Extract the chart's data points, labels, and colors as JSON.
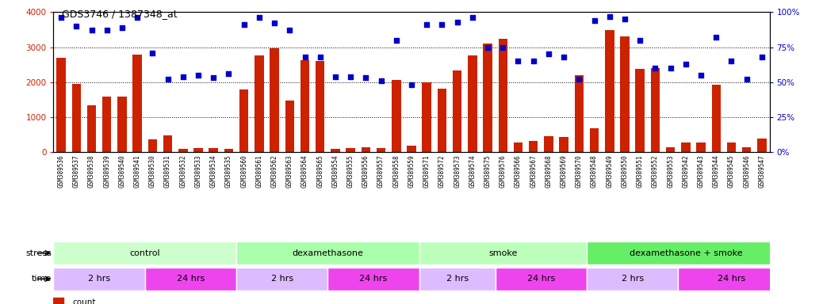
{
  "title": "GDS3746 / 1387348_at",
  "samples": [
    "GSM389536",
    "GSM389537",
    "GSM389538",
    "GSM389539",
    "GSM389540",
    "GSM389541",
    "GSM389530",
    "GSM389531",
    "GSM389532",
    "GSM389533",
    "GSM389534",
    "GSM389535",
    "GSM389560",
    "GSM389561",
    "GSM389562",
    "GSM389563",
    "GSM389564",
    "GSM389565",
    "GSM389554",
    "GSM389555",
    "GSM389556",
    "GSM389557",
    "GSM389558",
    "GSM389559",
    "GSM389571",
    "GSM389572",
    "GSM389573",
    "GSM389574",
    "GSM389575",
    "GSM389576",
    "GSM389566",
    "GSM389567",
    "GSM389568",
    "GSM389569",
    "GSM389570",
    "GSM389548",
    "GSM389549",
    "GSM389550",
    "GSM389551",
    "GSM389552",
    "GSM389553",
    "GSM389542",
    "GSM389543",
    "GSM389544",
    "GSM389545",
    "GSM389546",
    "GSM389547"
  ],
  "counts": [
    2700,
    1950,
    1340,
    1580,
    1580,
    2780,
    360,
    480,
    100,
    110,
    110,
    90,
    1800,
    2760,
    2960,
    1480,
    2620,
    2600,
    100,
    120,
    130,
    120,
    2050,
    190,
    2000,
    1820,
    2340,
    2760,
    3100,
    3230,
    270,
    310,
    450,
    430,
    2200,
    680,
    3480,
    3300,
    2380,
    2400,
    130,
    270,
    280,
    1920,
    280,
    130,
    390
  ],
  "percentiles": [
    96,
    90,
    87,
    87,
    89,
    96,
    71,
    52,
    54,
    55,
    53,
    56,
    91,
    96,
    92,
    87,
    68,
    68,
    54,
    54,
    53,
    51,
    80,
    48,
    91,
    91,
    93,
    96,
    75,
    75,
    65,
    65,
    70,
    68,
    52,
    94,
    97,
    95,
    80,
    60,
    60,
    63,
    55,
    82,
    65,
    52,
    68
  ],
  "bar_color": "#cc2200",
  "dot_color": "#0000cc",
  "ylim_left": [
    0,
    4000
  ],
  "ylim_right": [
    0,
    100
  ],
  "yticks_left": [
    0,
    1000,
    2000,
    3000,
    4000
  ],
  "yticks_right": [
    0,
    25,
    50,
    75,
    100
  ],
  "stress_groups": [
    {
      "label": "control",
      "start": 0,
      "end": 12,
      "color": "#ccffcc"
    },
    {
      "label": "dexamethasone",
      "start": 12,
      "end": 24,
      "color": "#aaffaa"
    },
    {
      "label": "smoke",
      "start": 24,
      "end": 35,
      "color": "#bbffbb"
    },
    {
      "label": "dexamethasone + smoke",
      "start": 35,
      "end": 48,
      "color": "#66ee66"
    }
  ],
  "time_groups": [
    {
      "label": "2 hrs",
      "start": 0,
      "end": 6,
      "color": "#ddbbff"
    },
    {
      "label": "24 hrs",
      "start": 6,
      "end": 12,
      "color": "#ee44ee"
    },
    {
      "label": "2 hrs",
      "start": 12,
      "end": 18,
      "color": "#ddbbff"
    },
    {
      "label": "24 hrs",
      "start": 18,
      "end": 24,
      "color": "#ee44ee"
    },
    {
      "label": "2 hrs",
      "start": 24,
      "end": 29,
      "color": "#ddbbff"
    },
    {
      "label": "24 hrs",
      "start": 29,
      "end": 35,
      "color": "#ee44ee"
    },
    {
      "label": "2 hrs",
      "start": 35,
      "end": 41,
      "color": "#ddbbff"
    },
    {
      "label": "24 hrs",
      "start": 41,
      "end": 48,
      "color": "#ee44ee"
    }
  ],
  "bar_width": 0.6,
  "grid_lines": [
    1000,
    2000,
    3000
  ],
  "xtick_bg_color": "#e8e8e8",
  "background_color": "#ffffff"
}
